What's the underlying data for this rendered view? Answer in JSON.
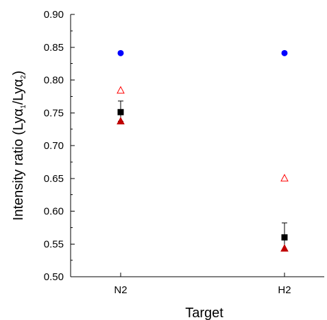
{
  "chart_data": {
    "type": "scatter",
    "title": "",
    "xlabel": "Target",
    "ylabel": {
      "prefix": "Intensity ratio (Ly",
      "alpha1": "α",
      "sub1": "1",
      "slash": "/Ly",
      "alpha2": "α",
      "sub2": "2",
      "suffix": ")"
    },
    "categories": [
      "N2",
      "H2"
    ],
    "ylim": [
      0.5,
      0.9
    ],
    "y_ticks": [
      "0.50",
      "0.55",
      "0.60",
      "0.65",
      "0.70",
      "0.75",
      "0.80",
      "0.85",
      "0.90"
    ],
    "grid": false,
    "series": [
      {
        "marker": "circle",
        "color": "#0000ff",
        "fill": true,
        "values": [
          0.841,
          0.841
        ]
      },
      {
        "marker": "triangle-open",
        "color": "#ff0000",
        "fill": false,
        "values": [
          0.784,
          0.65
        ]
      },
      {
        "marker": "square",
        "color": "#000000",
        "fill": true,
        "values": [
          0.751,
          0.56
        ],
        "error_plus": [
          0.017,
          0.022
        ],
        "error_minus": [
          0.014,
          0.02
        ]
      },
      {
        "marker": "triangle",
        "color": "#c00000",
        "fill": true,
        "values": [
          0.737,
          0.543
        ]
      }
    ]
  }
}
